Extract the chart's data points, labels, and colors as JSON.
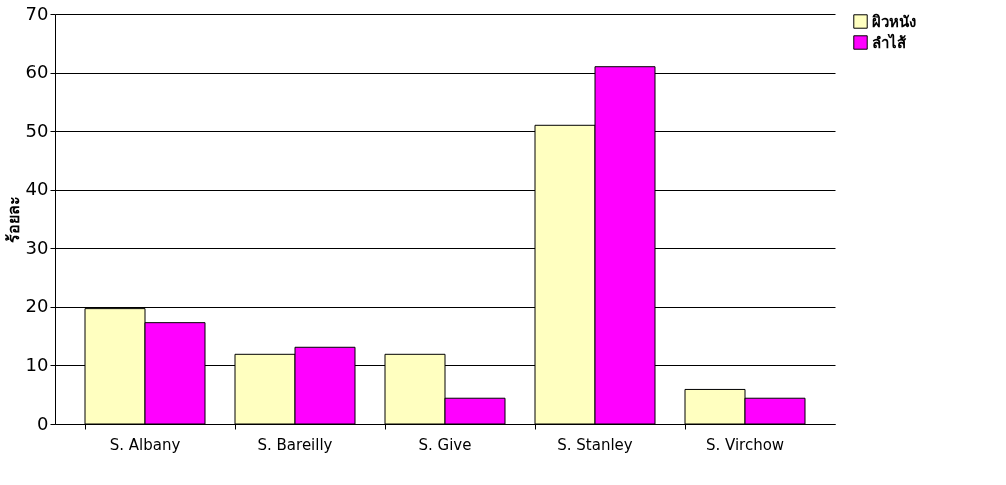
{
  "chart_data": {
    "type": "bar",
    "ylabel": "ร้อยละ",
    "categories": [
      "S. Albany",
      "S. Bareilly",
      "S. Give",
      "S. Stanley",
      "S. Virchow"
    ],
    "series": [
      {
        "name": "ผิวหนัง",
        "color": "#ffffc0",
        "values": [
          19.7,
          11.9,
          11.9,
          51.0,
          5.9
        ]
      },
      {
        "name": "ลำไส้",
        "color": "#ff00ff",
        "values": [
          17.3,
          13.1,
          4.4,
          61.0,
          4.4
        ]
      }
    ],
    "ylim": [
      0,
      70
    ],
    "yticks": [
      0,
      10,
      20,
      30,
      40,
      50,
      60,
      70
    ],
    "grid": "y",
    "legend": "top right"
  }
}
